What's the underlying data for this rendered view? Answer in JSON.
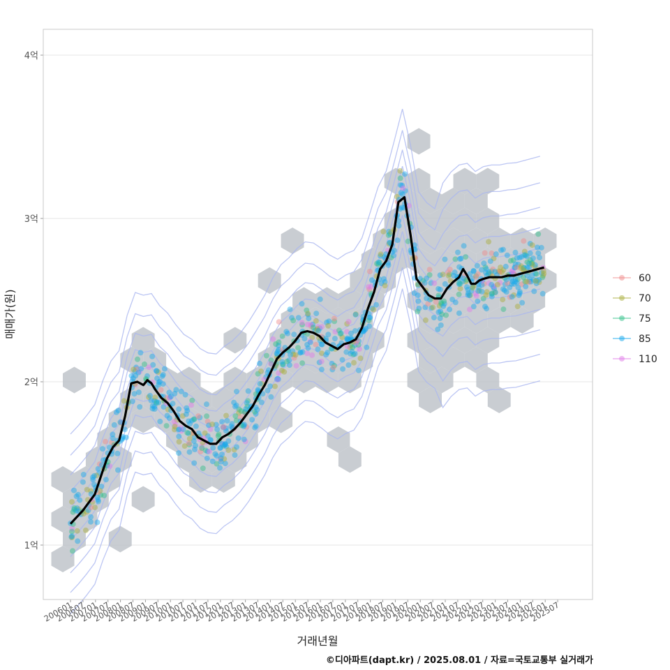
{
  "chart_data": {
    "type": "scatter",
    "xlabel": "거래년월",
    "ylabel": "매매가(원)",
    "ylim": [
      0.7,
      4.15
    ],
    "xlim_months": [
      "2005-12",
      "2025-11"
    ],
    "y_ticks": [
      {
        "value": 1,
        "label": "1억"
      },
      {
        "value": 2,
        "label": "2억"
      },
      {
        "value": 3,
        "label": "3억"
      },
      {
        "value": 4,
        "label": "4억"
      }
    ],
    "x_ticks": [
      "200601",
      "200607",
      "200701",
      "200707",
      "200801",
      "200807",
      "200901",
      "200907",
      "201001",
      "201007",
      "201101",
      "201107",
      "201201",
      "201207",
      "201301",
      "201307",
      "201401",
      "201407",
      "201501",
      "201507",
      "201601",
      "201607",
      "201701",
      "201707",
      "201801",
      "201807",
      "201901",
      "201907",
      "202001",
      "202007",
      "202101",
      "202107",
      "202201",
      "202207",
      "202301",
      "202307",
      "202401",
      "202407",
      "202501",
      "202507"
    ],
    "grid": true,
    "legend": {
      "placement": "right",
      "entries": [
        {
          "label": "60",
          "color": "#f08a8a"
        },
        {
          "label": "70",
          "color": "#a8ad3a"
        },
        {
          "label": "75",
          "color": "#2fbf87"
        },
        {
          "label": "85",
          "color": "#16a8ec"
        },
        {
          "label": "110",
          "color": "#e07ae8"
        }
      ]
    },
    "trend_line": {
      "color": "#000000",
      "x": [
        "2006-01",
        "2006-04",
        "2006-07",
        "2006-10",
        "2007-01",
        "2007-04",
        "2007-07",
        "2007-10",
        "2008-01",
        "2008-04",
        "2008-07",
        "2008-10",
        "2009-01",
        "2009-03",
        "2009-05",
        "2009-07",
        "2009-10",
        "2010-01",
        "2010-04",
        "2010-07",
        "2010-10",
        "2011-01",
        "2011-04",
        "2011-07",
        "2011-10",
        "2012-01",
        "2012-04",
        "2012-07",
        "2012-10",
        "2013-01",
        "2013-04",
        "2013-07",
        "2013-10",
        "2014-01",
        "2014-04",
        "2014-07",
        "2014-10",
        "2015-01",
        "2015-04",
        "2015-07",
        "2015-10",
        "2016-01",
        "2016-04",
        "2016-07",
        "2016-10",
        "2017-01",
        "2017-04",
        "2017-07",
        "2017-10",
        "2018-01",
        "2018-04",
        "2018-07",
        "2018-10",
        "2019-01",
        "2019-04",
        "2019-07",
        "2019-10",
        "2020-01",
        "2020-04",
        "2020-07",
        "2020-10",
        "2021-01",
        "2021-04",
        "2021-07",
        "2021-10",
        "2022-01",
        "2022-03",
        "2022-05",
        "2022-07",
        "2022-09",
        "2022-11",
        "2023-01",
        "2023-04",
        "2023-07",
        "2023-10",
        "2024-01",
        "2024-04",
        "2024-07",
        "2024-10",
        "2025-01",
        "2025-04",
        "2025-07"
      ],
      "y": [
        1.13,
        1.17,
        1.21,
        1.26,
        1.31,
        1.42,
        1.53,
        1.6,
        1.64,
        1.79,
        1.99,
        2.0,
        1.98,
        2.01,
        1.99,
        1.95,
        1.9,
        1.87,
        1.82,
        1.76,
        1.73,
        1.71,
        1.66,
        1.64,
        1.62,
        1.62,
        1.66,
        1.68,
        1.71,
        1.75,
        1.8,
        1.85,
        1.92,
        1.98,
        2.06,
        2.14,
        2.18,
        2.21,
        2.25,
        2.3,
        2.31,
        2.3,
        2.28,
        2.24,
        2.22,
        2.2,
        2.23,
        2.24,
        2.26,
        2.33,
        2.45,
        2.55,
        2.69,
        2.74,
        2.84,
        3.1,
        3.13,
        2.9,
        2.63,
        2.58,
        2.53,
        2.51,
        2.51,
        2.57,
        2.61,
        2.64,
        2.69,
        2.65,
        2.6,
        2.6,
        2.62,
        2.63,
        2.64,
        2.64,
        2.64,
        2.65,
        2.65,
        2.66,
        2.67,
        2.68,
        2.69,
        2.7
      ]
    },
    "hexbin_color": "#bfc4ca",
    "contour_color": "#aab6f0"
  },
  "credit": "©디아파트(dapt.kr) / 2025.08.01 / 자료=국토교통부 실거래가"
}
